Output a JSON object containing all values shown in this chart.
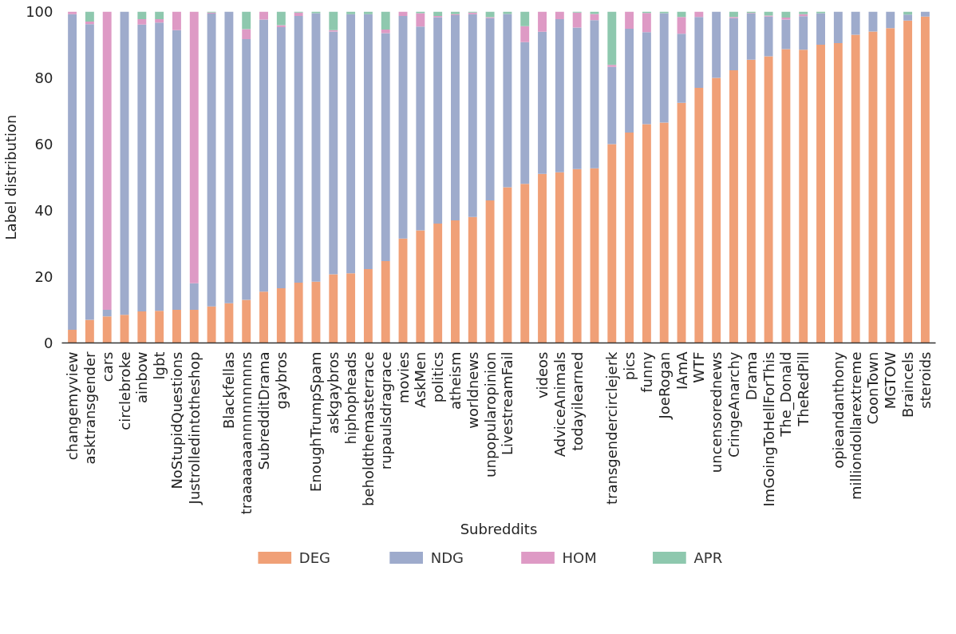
{
  "chart_data": {
    "type": "bar",
    "stacked": true,
    "xlabel": "Subreddits",
    "ylabel": "Label distribution",
    "categories": [
      "changemyview",
      "asktransgender",
      "cars",
      "circlebroke",
      "ainbow",
      "lgbt",
      "NoStupidQuestions",
      "Justrolledintotheshop",
      null,
      "Blackfellas",
      "traaaaaaannnnnnnnns",
      "SubredditDrama",
      "gaybros",
      null,
      "EnoughTrumpSpam",
      "askgaybros",
      "hiphopheads",
      "beholdthemasterrace",
      "rupaulsdragrace",
      "movies",
      "AskMen",
      "politics",
      "atheism",
      "worldnews",
      "unpopularopinion",
      "LivestreamFail",
      null,
      "videos",
      "AdviceAnimals",
      "todayilearned",
      null,
      "transgendercirclejerk",
      "pics",
      "funny",
      "JoeRogan",
      "IAmA",
      "WTF",
      "uncensorednews",
      "CringeAnarchy",
      "Drama",
      "ImGoingToHellForThis",
      "The_Donald",
      "TheRedPill",
      null,
      "opieandanthony",
      "milliondollarextreme",
      "CoonTown",
      "MGTOW",
      "Braincels",
      "steroids"
    ],
    "series": [
      {
        "name": "DEG",
        "color": "#f0a077",
        "values": [
          4,
          7,
          8,
          8.5,
          9.5,
          9.7,
          10,
          10,
          11,
          12,
          13,
          15.5,
          16.5,
          18.2,
          18.5,
          20.7,
          21,
          22.3,
          24.7,
          31.5,
          34,
          36,
          37,
          38,
          43,
          47,
          48,
          51,
          51.5,
          52.5,
          52.7,
          60,
          63.5,
          66,
          66.5,
          72.5,
          77,
          80,
          82.3,
          85.5,
          86.5,
          88.7,
          88.5,
          90,
          90.5,
          93,
          94,
          95,
          97.3,
          98.5
        ]
      },
      {
        "name": "NDG",
        "color": "#9eabcc",
        "values": [
          95.2,
          89.2,
          2,
          91.5,
          86.6,
          87,
          84.4,
          8,
          88.4,
          88,
          78.7,
          82.1,
          78.8,
          80.5,
          81,
          73.3,
          78.2,
          76.9,
          68.8,
          67.2,
          61.5,
          62.3,
          61.9,
          61.2,
          55,
          52.3,
          42.8,
          42.9,
          46.2,
          42.7,
          44.7,
          23.3,
          31.3,
          27.8,
          33,
          20.8,
          21.4,
          20,
          15.7,
          13.9,
          12,
          8.9,
          10.1,
          9.5,
          9.5,
          7,
          6,
          5,
          1.8,
          1.5
        ]
      },
      {
        "name": "HOM",
        "color": "#de9ac5",
        "values": [
          0.8,
          0.8,
          90,
          0,
          1.6,
          1,
          5.6,
          82,
          0.3,
          0,
          3,
          2.4,
          0.6,
          1,
          0,
          0.4,
          0,
          0,
          1.1,
          1.3,
          4,
          0.4,
          0.3,
          0.5,
          0.3,
          0,
          4.8,
          6.1,
          2.3,
          4.5,
          1.9,
          0.6,
          5.2,
          5.8,
          0,
          5.1,
          1.6,
          0,
          0.4,
          0.2,
          0.3,
          0.6,
          0.6,
          0,
          0,
          0,
          0,
          0,
          0,
          0
        ]
      },
      {
        "name": "APR",
        "color": "#8ec8ae",
        "values": [
          0,
          3.0,
          0,
          0,
          2.3,
          2.3,
          0,
          0,
          0.3,
          0,
          5.3,
          0,
          4.1,
          0.3,
          0.5,
          5.6,
          0.8,
          0.8,
          5.4,
          0,
          0.5,
          1.3,
          0.8,
          0.3,
          1.7,
          0.7,
          4.4,
          0,
          0,
          0.3,
          0.7,
          16.1,
          0,
          0.4,
          0.5,
          1.6,
          0,
          0,
          1.6,
          0.4,
          1.2,
          1.8,
          0.8,
          0.5,
          0,
          0,
          0,
          0,
          0.9,
          0
        ]
      }
    ],
    "ylim": [
      0,
      100
    ],
    "yticks": [
      0,
      20,
      40,
      60,
      80,
      100
    ],
    "grid": false,
    "legend": "bottom"
  }
}
